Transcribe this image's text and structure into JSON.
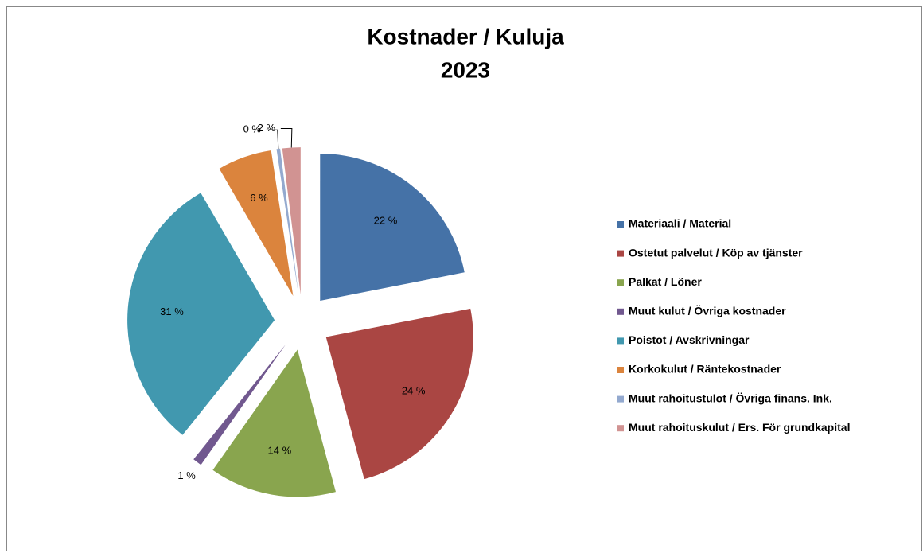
{
  "chart_data": {
    "type": "pie",
    "title": "Kostnader / Kuluja",
    "subtitle": "2023",
    "categories": [
      "Materiaali / Material",
      "Ostetut palvelut / Köp av tjänster",
      "Palkat / Löner",
      "Muut kulut / Övriga kostnader",
      "Poistot / Avskrivningar",
      "Korkokulut / Räntekostnader",
      "Muut rahoitustulot / Övriga finans. Ink.",
      "Muut rahoituskulut / Ers. För grundkapital"
    ],
    "values": [
      22,
      24,
      14,
      1,
      31,
      6,
      0.4,
      2
    ],
    "value_labels": [
      "22 %",
      "24 %",
      "14 %",
      "1 %",
      "31 %",
      "6 %",
      "0 %",
      "2 %"
    ],
    "colors": [
      "#4572a7",
      "#aa4643",
      "#89a54e",
      "#71588f",
      "#4198af",
      "#db843d",
      "#93a9cf",
      "#d19392"
    ],
    "legend": "right"
  }
}
